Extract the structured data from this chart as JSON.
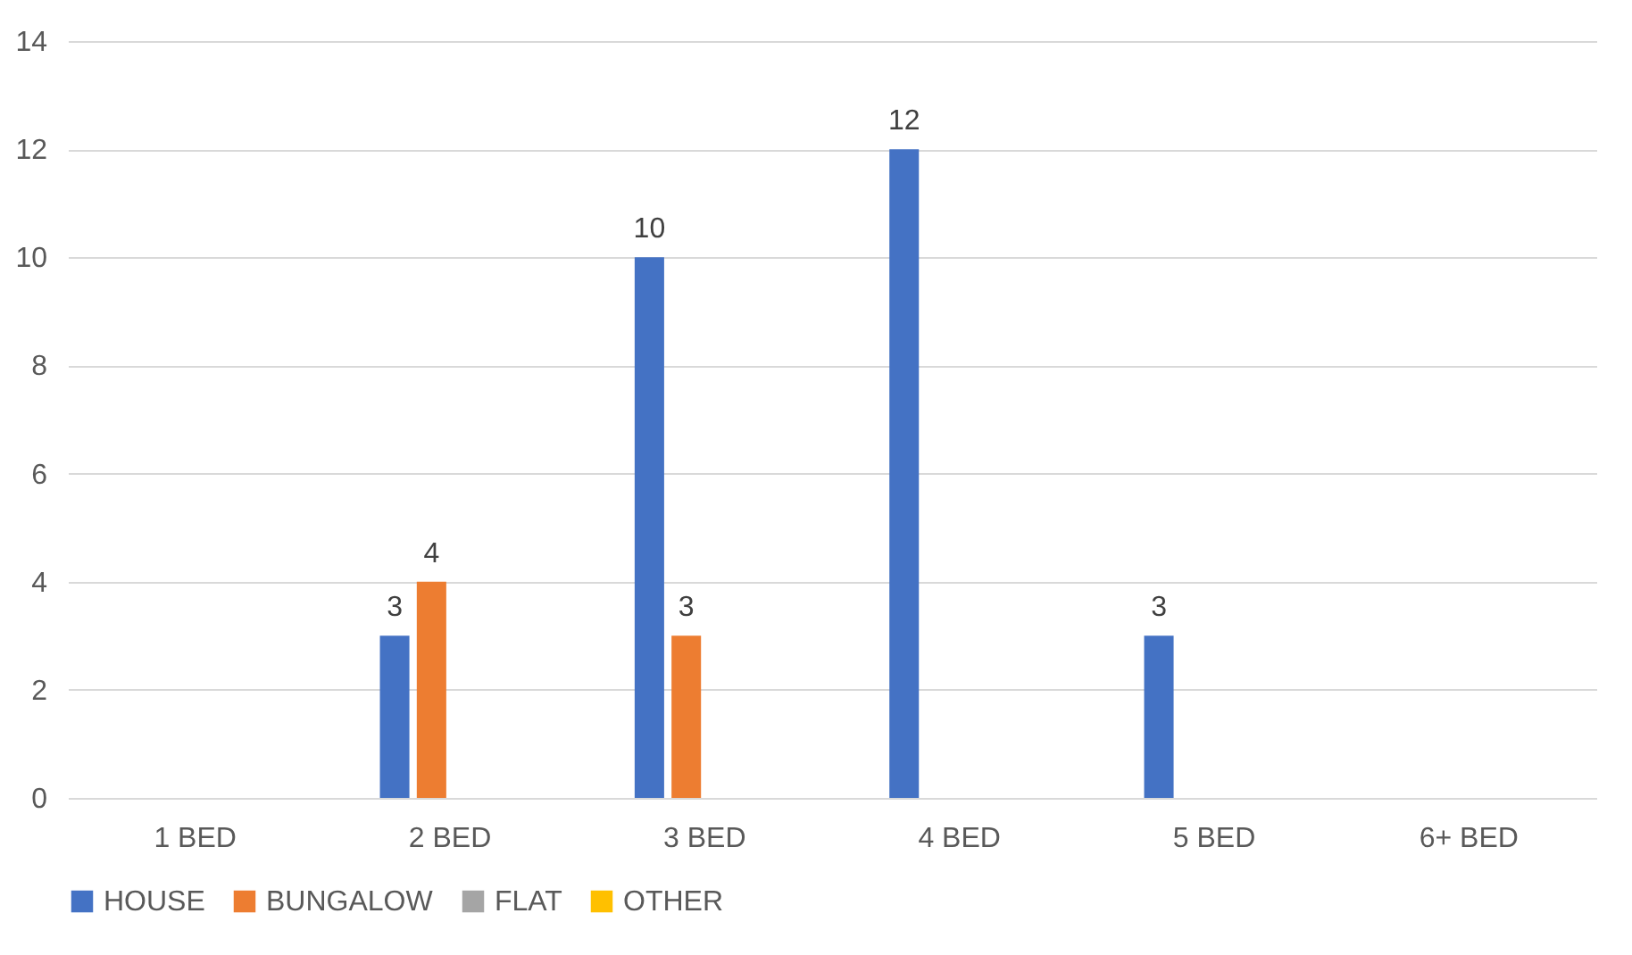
{
  "chart_data": {
    "type": "bar",
    "categories": [
      "1 BED",
      "2 BED",
      "3 BED",
      "4 BED",
      "5 BED",
      "6+ BED"
    ],
    "series": [
      {
        "name": "HOUSE",
        "color": "#4472c4",
        "values": [
          null,
          3,
          10,
          12,
          3,
          null
        ]
      },
      {
        "name": "BUNGALOW",
        "color": "#ed7d31",
        "values": [
          null,
          4,
          3,
          null,
          null,
          null
        ]
      },
      {
        "name": "FLAT",
        "color": "#a5a5a5",
        "values": [
          null,
          null,
          null,
          null,
          null,
          null
        ]
      },
      {
        "name": "OTHER",
        "color": "#ffc000",
        "values": [
          null,
          null,
          null,
          null,
          null,
          null
        ]
      }
    ],
    "ylim": [
      0,
      14
    ],
    "yticks": [
      0,
      2,
      4,
      6,
      8,
      10,
      12,
      14
    ],
    "grid": "y",
    "legend": "bottom",
    "data_labels": true
  }
}
